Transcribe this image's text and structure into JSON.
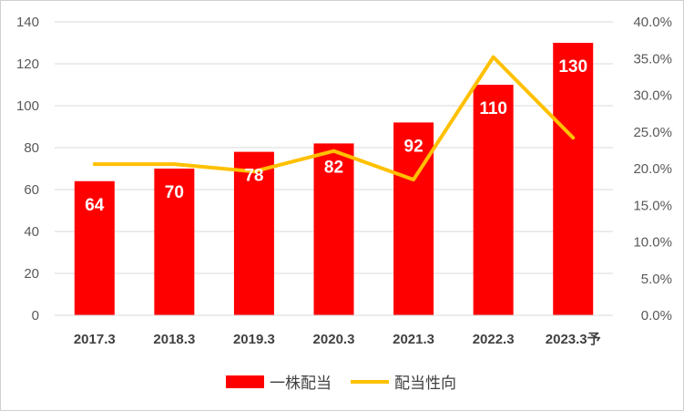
{
  "chart_data": {
    "type": "bar",
    "categories": [
      "2017.3",
      "2018.3",
      "2019.3",
      "2020.3",
      "2021.3",
      "2022.3",
      "2023.3予"
    ],
    "series": [
      {
        "name": "一株配当",
        "kind": "bar",
        "axis": "left",
        "color": "#ff0000",
        "values": [
          64,
          70,
          78,
          82,
          92,
          110,
          130
        ],
        "labels": [
          "64",
          "70",
          "78",
          "82",
          "92",
          "110",
          "130"
        ]
      },
      {
        "name": "配当性向",
        "kind": "line",
        "axis": "right",
        "color": "#ffc000",
        "values": [
          20.6,
          20.6,
          19.6,
          22.4,
          18.5,
          35.2,
          24.2
        ]
      }
    ],
    "ylim_left": [
      0,
      140
    ],
    "yticks_left": [
      "0",
      "20",
      "40",
      "60",
      "80",
      "100",
      "120",
      "140"
    ],
    "ylim_right": [
      0,
      40
    ],
    "yticks_right": [
      "0.0%",
      "5.0%",
      "10.0%",
      "15.0%",
      "20.0%",
      "25.0%",
      "30.0%",
      "35.0%",
      "40.0%"
    ],
    "grid": true,
    "legend_position": "bottom"
  }
}
